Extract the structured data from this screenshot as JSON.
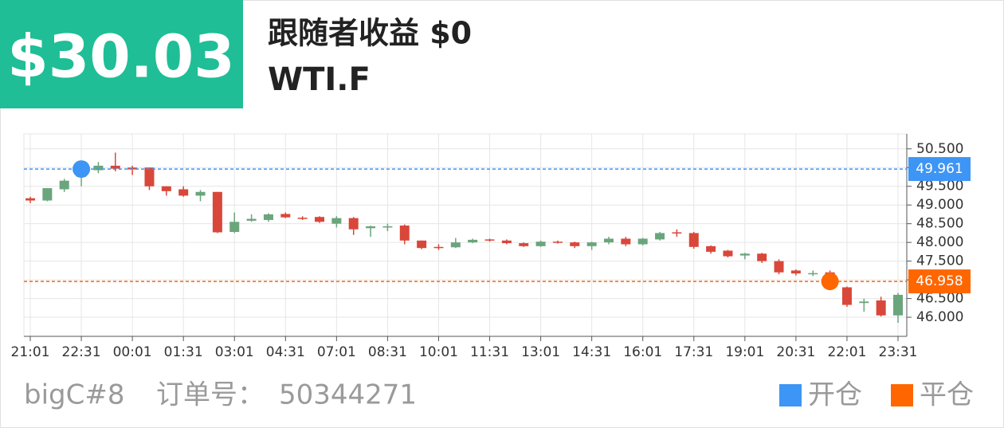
{
  "header": {
    "profit": "$30.03",
    "title": "跟随者收益 $0",
    "symbol": "WTI.F"
  },
  "chart_data": {
    "type": "candlestick",
    "categories": [
      "21:01",
      null,
      null,
      "22:31",
      null,
      null,
      "00:01",
      null,
      null,
      "01:31",
      null,
      null,
      "03:01",
      null,
      null,
      "04:31",
      null,
      null,
      "07:01",
      null,
      null,
      "08:31",
      null,
      null,
      "10:01",
      null,
      null,
      "11:31",
      null,
      null,
      "13:01",
      null,
      null,
      "14:31",
      null,
      null,
      "16:01",
      null,
      null,
      "17:31",
      null,
      null,
      "19:01",
      null,
      null,
      "20:31",
      null,
      null,
      "22:01",
      null,
      null,
      "23:31"
    ],
    "open": [
      49.18,
      49.12,
      49.42,
      49.75,
      49.93,
      50.05,
      50.0,
      50.0,
      49.5,
      49.42,
      49.25,
      49.35,
      48.28,
      48.58,
      48.6,
      48.76,
      48.66,
      48.68,
      48.5,
      48.65,
      48.38,
      48.4,
      48.45,
      48.05,
      47.88,
      47.87,
      48.0,
      48.08,
      48.05,
      47.98,
      47.9,
      48.02,
      48.0,
      47.9,
      48.0,
      48.1,
      47.95,
      48.08,
      48.27,
      48.25,
      47.9,
      47.78,
      47.65,
      47.7,
      47.5,
      47.25,
      47.15,
      47.2,
      46.8,
      46.38,
      46.45,
      46.05
    ],
    "high": [
      49.22,
      49.45,
      49.7,
      50.0,
      50.15,
      50.4,
      50.05,
      50.0,
      49.5,
      49.5,
      49.4,
      49.35,
      48.8,
      48.75,
      48.78,
      48.8,
      48.7,
      48.7,
      48.7,
      48.68,
      48.45,
      48.5,
      48.48,
      48.05,
      47.95,
      48.12,
      48.1,
      48.1,
      48.08,
      48.0,
      48.05,
      48.05,
      48.02,
      48.02,
      48.15,
      48.15,
      48.12,
      48.28,
      48.35,
      48.28,
      47.92,
      47.8,
      47.72,
      47.72,
      47.55,
      47.28,
      47.25,
      47.25,
      46.82,
      46.5,
      46.55,
      46.65
    ],
    "low": [
      49.05,
      49.1,
      49.35,
      49.5,
      49.85,
      49.9,
      49.8,
      49.4,
      49.25,
      49.22,
      49.1,
      48.25,
      48.25,
      48.55,
      48.55,
      48.65,
      48.6,
      48.52,
      48.4,
      48.2,
      48.15,
      48.3,
      47.95,
      47.82,
      47.8,
      47.85,
      47.98,
      48.02,
      47.95,
      47.88,
      47.88,
      47.97,
      47.85,
      47.8,
      47.95,
      47.9,
      47.92,
      48.05,
      48.15,
      47.83,
      47.7,
      47.6,
      47.55,
      47.45,
      47.15,
      47.12,
      47.1,
      46.9,
      46.28,
      46.15,
      46.02,
      45.85
    ],
    "close": [
      49.12,
      49.45,
      49.65,
      49.9,
      50.05,
      49.97,
      49.95,
      49.5,
      49.37,
      49.25,
      49.35,
      48.27,
      48.55,
      48.63,
      48.75,
      48.67,
      48.63,
      48.55,
      48.65,
      48.35,
      48.43,
      48.43,
      48.05,
      47.85,
      47.85,
      48.0,
      48.07,
      48.05,
      47.98,
      47.9,
      48.02,
      47.99,
      47.9,
      48.0,
      48.1,
      47.95,
      48.1,
      48.25,
      48.25,
      47.88,
      47.75,
      47.63,
      47.7,
      47.5,
      47.2,
      47.17,
      47.18,
      46.95,
      46.33,
      46.42,
      46.05,
      46.6
    ],
    "up_color": "#6aa57c",
    "down_color": "#d9473a",
    "ylim": [
      45.49,
      50.9
    ],
    "yticks": [
      {
        "value": 46,
        "label": "46.000"
      },
      {
        "value": 46.5,
        "label": "46.500"
      },
      {
        "value": 47,
        "label": "47.000"
      },
      {
        "value": 47.5,
        "label": "47.500"
      },
      {
        "value": 48,
        "label": "48.000"
      },
      {
        "value": 48.5,
        "label": "48.500"
      },
      {
        "value": 49,
        "label": "49.000"
      },
      {
        "value": 49.5,
        "label": "49.500"
      },
      {
        "value": 50,
        "label": "50.000"
      },
      {
        "value": 50.5,
        "label": "50.500"
      }
    ],
    "grid": true,
    "markers": [
      {
        "name": "开仓",
        "color": "#3d95f5",
        "value": 49.961
      },
      {
        "name": "平仓",
        "color": "#ff6600",
        "value": 46.958
      }
    ]
  },
  "footer": {
    "account": "bigC#8",
    "order_label": "订单号：",
    "order_no": "50344271"
  }
}
